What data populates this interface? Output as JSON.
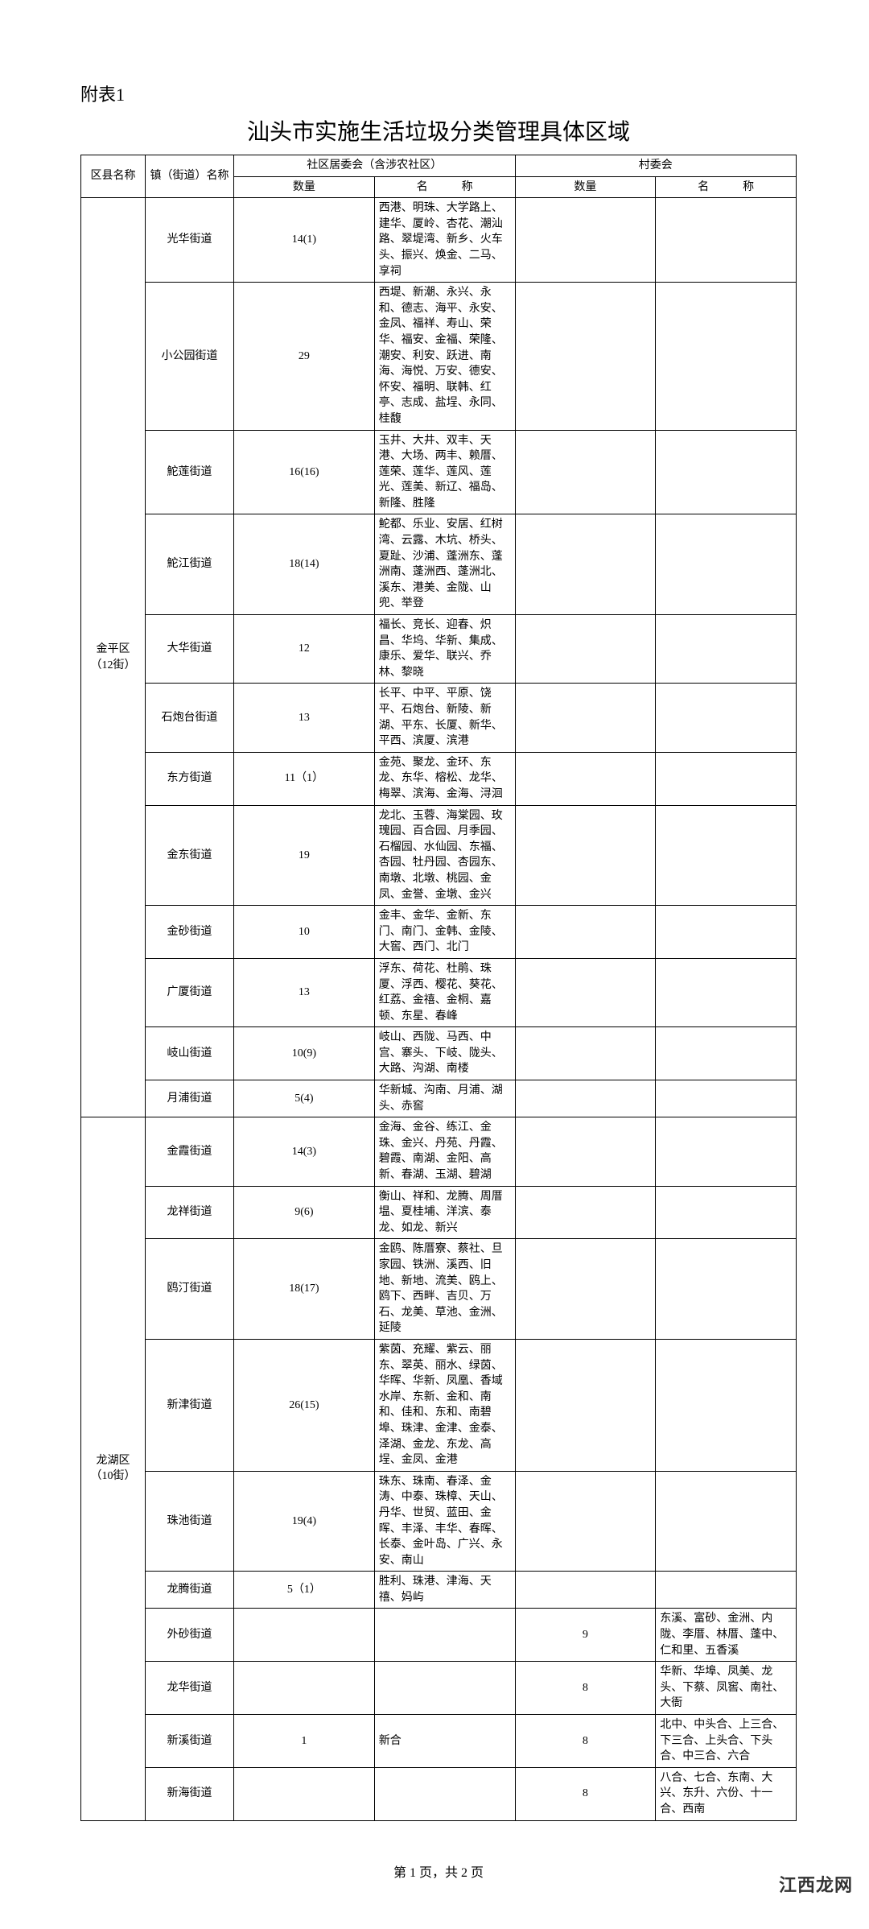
{
  "appendix_label": "附表1",
  "title": "汕头市实施生活垃圾分类管理具体区域",
  "headers": {
    "district": "区县名称",
    "town": "镇（街道）名称",
    "community_group": "社区居委会（含涉农社区）",
    "village_group": "村委会",
    "count": "数量",
    "name_spaced": "名　　　称"
  },
  "districts": [
    {
      "name": "金平区\n（12街）",
      "rows": [
        {
          "town": "光华街道",
          "ccount": "14(1)",
          "cname": "西港、明珠、大学路上、建华、厦岭、杏花、潮汕路、翠堤湾、新乡、火车头、振兴、焕金、二马、享祠",
          "vcount": "",
          "vname": ""
        },
        {
          "town": "小公园街道",
          "ccount": "29",
          "cname": "西堤、新潮、永兴、永和、德志、海平、永安、金凤、福祥、寿山、荣华、福安、金福、荣隆、潮安、利安、跃进、南海、海悦、万安、德安、怀安、福明、联韩、红亭、志成、盐埕、永同、桂馥",
          "vcount": "",
          "vname": ""
        },
        {
          "town": "鮀莲街道",
          "ccount": "16(16)",
          "cname": "玉井、大井、双丰、天港、大场、两丰、赖厝、莲荣、莲华、莲风、莲光、莲美、新辽、福岛、新隆、胜隆",
          "vcount": "",
          "vname": ""
        },
        {
          "town": "鮀江街道",
          "ccount": "18(14)",
          "cname": "鮀都、乐业、安居、红树湾、云露、木坑、桥头、夏趾、沙浦、蓬洲东、蓬洲南、蓬洲西、蓬洲北、溪东、港美、金陇、山兜、举登",
          "vcount": "",
          "vname": ""
        },
        {
          "town": "大华街道",
          "ccount": "12",
          "cname": "福长、竞长、迎春、炽昌、华坞、华新、集成、康乐、爱华、联兴、乔林、黎晓",
          "vcount": "",
          "vname": ""
        },
        {
          "town": "石炮台街道",
          "ccount": "13",
          "cname": "长平、中平、平原、饶平、石炮台、新陵、新湖、平东、长厦、新华、平西、滨厦、滨港",
          "vcount": "",
          "vname": ""
        },
        {
          "town": "东方街道",
          "ccount": "11（1）",
          "cname": "金苑、聚龙、金环、东龙、东华、榕松、龙华、梅翠、滨海、金海、浔洄",
          "vcount": "",
          "vname": ""
        },
        {
          "town": "金东街道",
          "ccount": "19",
          "cname": "龙北、玉蓉、海棠园、玫瑰园、百合园、月季园、石榴园、水仙园、东福、杏园、牡丹园、杏园东、南墩、北墩、桃园、金凤、金誉、金墩、金兴",
          "vcount": "",
          "vname": ""
        },
        {
          "town": "金砂街道",
          "ccount": "10",
          "cname": "金丰、金华、金新、东门、南门、金韩、金陵、大窖、西门、北门",
          "vcount": "",
          "vname": ""
        },
        {
          "town": "广厦街道",
          "ccount": "13",
          "cname": "浮东、荷花、杜鹃、珠厦、浮西、樱花、葵花、红荔、金禧、金桐、嘉顿、东星、春峰",
          "vcount": "",
          "vname": ""
        },
        {
          "town": "岐山街道",
          "ccount": "10(9)",
          "cname": "岐山、西陇、马西、中宫、寨头、下岐、陇头、大路、沟湖、南楼",
          "vcount": "",
          "vname": ""
        },
        {
          "town": "月浦街道",
          "ccount": "5(4)",
          "cname": "华新城、沟南、月浦、湖头、赤窖",
          "vcount": "",
          "vname": ""
        }
      ]
    },
    {
      "name": "龙湖区\n（10街）",
      "rows": [
        {
          "town": "金霞街道",
          "ccount": "14(3)",
          "cname": "金海、金谷、练江、金珠、金兴、丹苑、丹霞、碧霞、南湖、金阳、高新、春湖、玉湖、碧湖",
          "vcount": "",
          "vname": ""
        },
        {
          "town": "龙祥街道",
          "ccount": "9(6)",
          "cname": "衡山、祥和、龙腾、周厝塭、夏桂埔、洋滨、泰龙、如龙、新兴",
          "vcount": "",
          "vname": ""
        },
        {
          "town": "鸥汀街道",
          "ccount": "18(17)",
          "cname": "金鸥、陈厝寮、蔡社、旦家园、铁洲、溪西、旧地、新地、流美、鸥上、鸥下、西畔、吉贝、万石、龙美、草池、金洲、延陵",
          "vcount": "",
          "vname": ""
        },
        {
          "town": "新津街道",
          "ccount": "26(15)",
          "cname": "紫茵、充耀、紫云、丽东、翠英、丽水、绿茵、华晖、华新、凤凰、香域水岸、东新、金和、南和、佳和、东和、南碧埠、珠津、金津、金泰、泽湖、金龙、东龙、高埕、金凤、金港",
          "vcount": "",
          "vname": ""
        },
        {
          "town": "珠池街道",
          "ccount": "19(4)",
          "cname": "珠东、珠南、春泽、金涛、中泰、珠樟、天山、丹华、世贸、蓝田、金晖、丰泽、丰华、春晖、长泰、金叶岛、广兴、永安、南山",
          "vcount": "",
          "vname": ""
        },
        {
          "town": "龙腾街道",
          "ccount": "5（1）",
          "cname": "胜利、珠港、津海、天禧、妈屿",
          "vcount": "",
          "vname": ""
        },
        {
          "town": "外砂街道",
          "ccount": "",
          "cname": "",
          "vcount": "9",
          "vname": "东溪、富砂、金洲、内陇、李厝、林厝、蓬中、仁和里、五香溪"
        },
        {
          "town": "龙华街道",
          "ccount": "",
          "cname": "",
          "vcount": "8",
          "vname": "华新、华埠、凤美、龙头、下蔡、凤窖、南社、大衙"
        },
        {
          "town": "新溪街道",
          "ccount": "1",
          "cname": "新合",
          "vcount": "8",
          "vname": "北中、中头合、上三合、下三合、上头合、下头合、中三合、六合"
        },
        {
          "town": "新海街道",
          "ccount": "",
          "cname": "",
          "vcount": "8",
          "vname": "八合、七合、东南、大兴、东升、六份、十一合、西南"
        }
      ]
    }
  ],
  "page_footer": "第 1 页，共 2 页",
  "watermark": "江西龙网"
}
